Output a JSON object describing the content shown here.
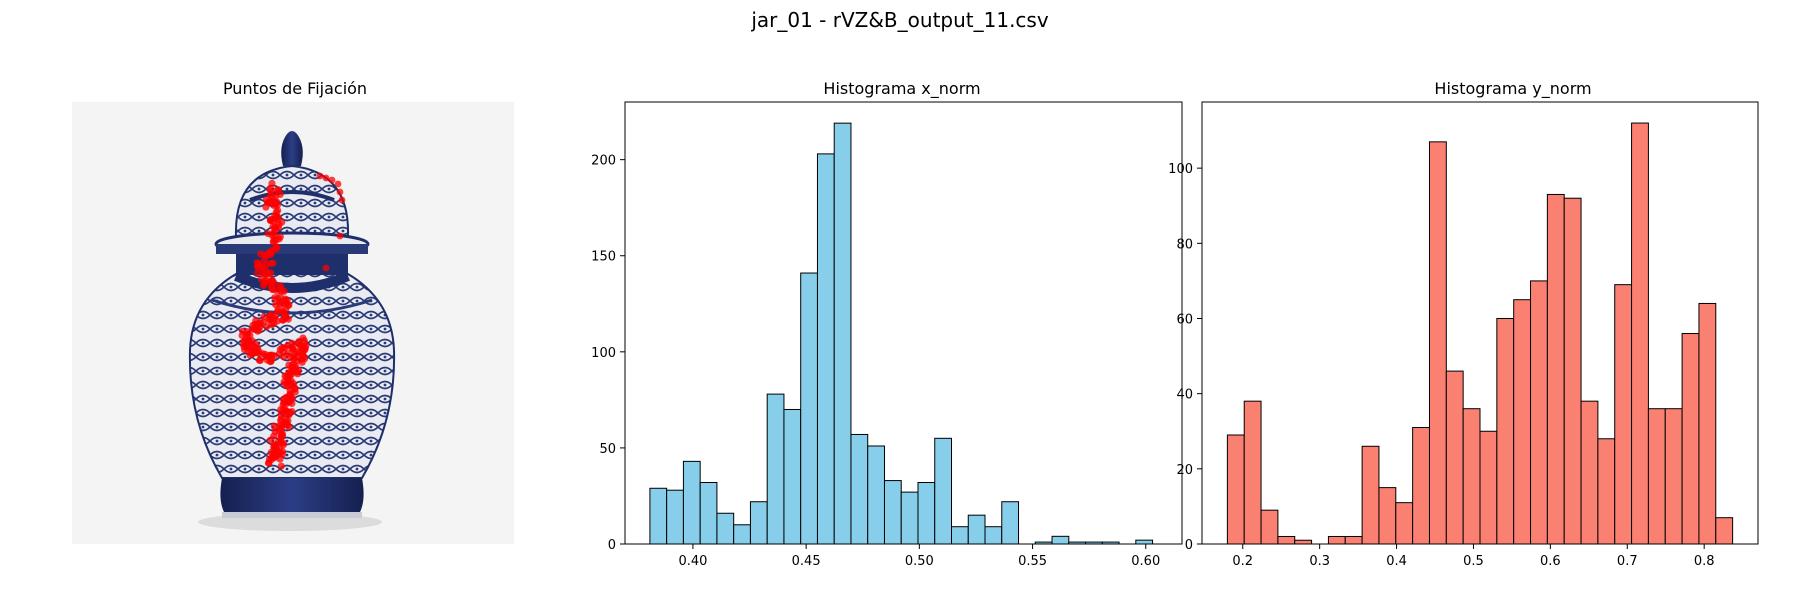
{
  "suptitle": "jar_01 - rVZ&B_output_11.csv",
  "panel_image": {
    "title": "Puntos de Fijación",
    "colors": {
      "background": "#f4f4f4",
      "porcelain": "#e9ebf1",
      "cobalt": "#1f2f6b",
      "fixation": "#ff0000"
    }
  },
  "chart_data": [
    {
      "type": "bar",
      "title": "Histograma x_norm",
      "xlabel": "",
      "ylabel": "",
      "color": "#87ceeb",
      "edgecolor": "#000000",
      "bin_edges": [
        0.381,
        0.3884,
        0.3958,
        0.4032,
        0.4106,
        0.418,
        0.4254,
        0.4328,
        0.4402,
        0.4476,
        0.455,
        0.4624,
        0.4698,
        0.4772,
        0.4846,
        0.492,
        0.4994,
        0.5068,
        0.5142,
        0.5216,
        0.529,
        0.5364,
        0.5438,
        0.5512,
        0.5586,
        0.566,
        0.5734,
        0.5808,
        0.5882,
        0.5956,
        0.603
      ],
      "values": [
        29,
        28,
        43,
        32,
        16,
        10,
        22,
        78,
        70,
        141,
        203,
        219,
        57,
        51,
        33,
        27,
        32,
        55,
        9,
        15,
        9,
        22,
        0,
        1,
        4,
        1,
        1,
        1,
        0,
        2
      ],
      "xlim": [
        0.37,
        0.616
      ],
      "ylim": [
        0,
        230
      ],
      "xticks": [
        "0.40",
        "0.45",
        "0.50",
        "0.55",
        "0.60"
      ],
      "yticks": [
        "0",
        "50",
        "100",
        "150",
        "200"
      ]
    },
    {
      "type": "bar",
      "title": "Histograma y_norm",
      "xlabel": "",
      "ylabel": "",
      "color": "#fa8072",
      "edgecolor": "#000000",
      "bin_edges": [
        0.18,
        0.2019,
        0.2238,
        0.2457,
        0.2676,
        0.2895,
        0.3114,
        0.3333,
        0.3552,
        0.3771,
        0.399,
        0.4209,
        0.4428,
        0.4647,
        0.4866,
        0.5085,
        0.5304,
        0.5523,
        0.5742,
        0.5961,
        0.618,
        0.6399,
        0.6618,
        0.6837,
        0.7056,
        0.7275,
        0.7494,
        0.7713,
        0.7932,
        0.8151,
        0.837
      ],
      "values": [
        29,
        38,
        9,
        2,
        1,
        0,
        2,
        2,
        26,
        15,
        11,
        31,
        107,
        46,
        36,
        30,
        60,
        65,
        70,
        93,
        92,
        38,
        28,
        69,
        112,
        36,
        36,
        56,
        64,
        7
      ],
      "xlim": [
        0.147,
        0.87
      ],
      "ylim": [
        0,
        117.6
      ],
      "xticks": [
        "0.2",
        "0.3",
        "0.4",
        "0.5",
        "0.6",
        "0.7",
        "0.8"
      ],
      "yticks": [
        "0",
        "20",
        "40",
        "60",
        "80",
        "100"
      ]
    }
  ]
}
